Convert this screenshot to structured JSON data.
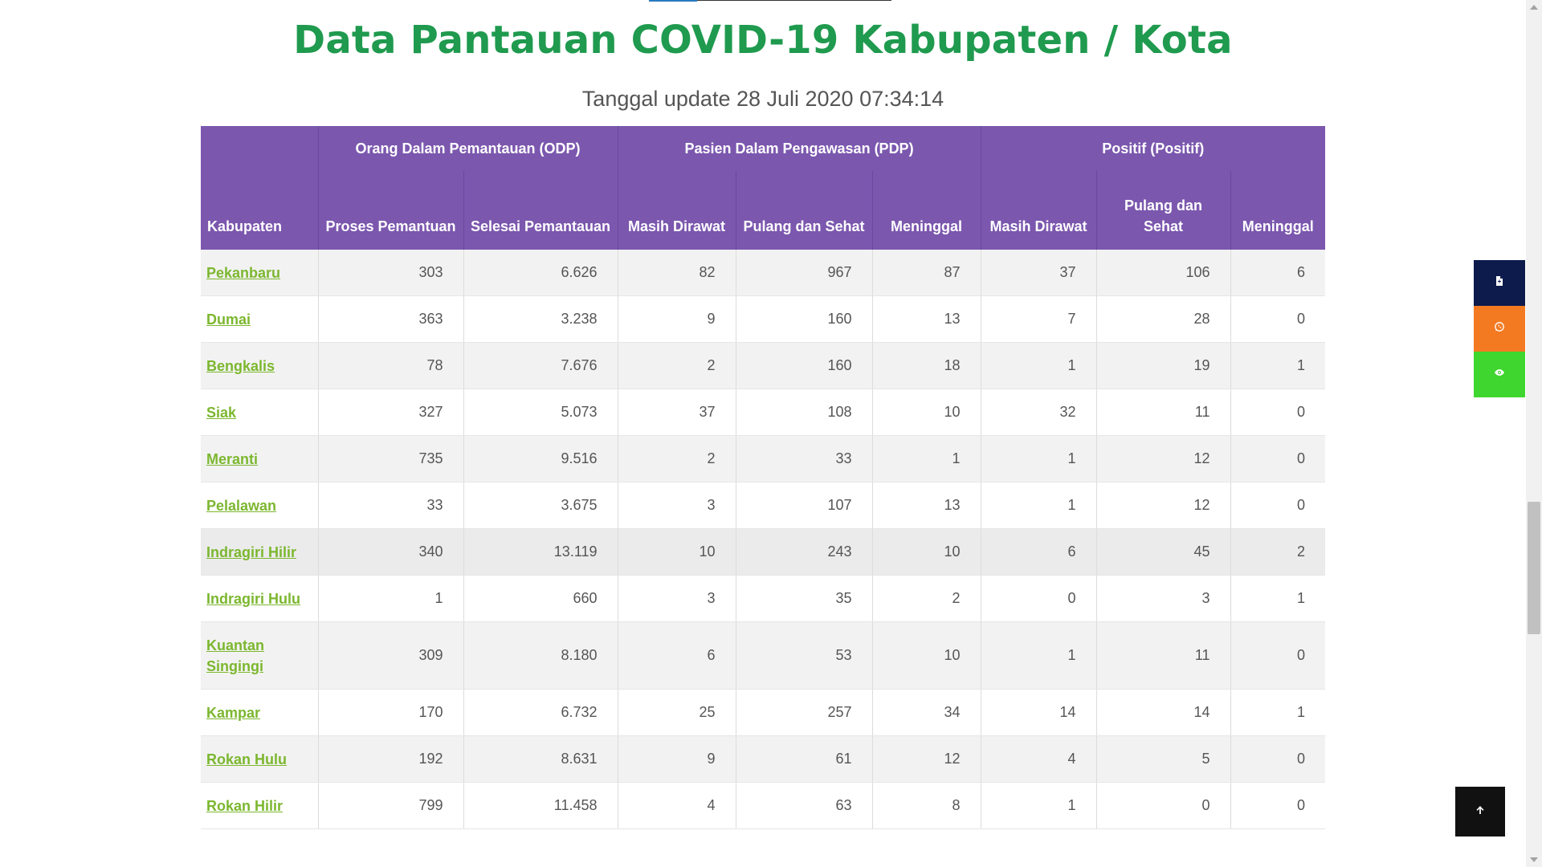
{
  "page": {
    "title": "Data Pantauan COVID-19 Kabupaten / Kota",
    "update_text": "Tanggal update 28 Juli 2020 07:34:14"
  },
  "table": {
    "header_kabupaten": "Kabupaten",
    "groups": {
      "odp": "Orang Dalam Pemantauan (ODP)",
      "pdp": "Pasien Dalam Pengawasan (PDP)",
      "positif": "Positif (Positif)"
    },
    "subheaders": {
      "odp_proses": "Proses Pemantuan",
      "odp_selesai": "Selesai Pemantauan",
      "pdp_masih": "Masih Dirawat",
      "pdp_pulang": "Pulang dan Sehat",
      "pdp_meninggal": "Meninggal",
      "pos_masih": "Masih Dirawat",
      "pos_pulang": "Pulang dan Sehat",
      "pos_meninggal": "Meninggal"
    },
    "rows": [
      {
        "kabupaten": "Pekanbaru",
        "odp_proses": "303",
        "odp_selesai": "6.626",
        "pdp_masih": "82",
        "pdp_pulang": "967",
        "pdp_meninggal": "87",
        "pos_masih": "37",
        "pos_pulang": "106",
        "pos_meninggal": "6"
      },
      {
        "kabupaten": "Dumai",
        "odp_proses": "363",
        "odp_selesai": "3.238",
        "pdp_masih": "9",
        "pdp_pulang": "160",
        "pdp_meninggal": "13",
        "pos_masih": "7",
        "pos_pulang": "28",
        "pos_meninggal": "0"
      },
      {
        "kabupaten": "Bengkalis",
        "odp_proses": "78",
        "odp_selesai": "7.676",
        "pdp_masih": "2",
        "pdp_pulang": "160",
        "pdp_meninggal": "18",
        "pos_masih": "1",
        "pos_pulang": "19",
        "pos_meninggal": "1"
      },
      {
        "kabupaten": "Siak",
        "odp_proses": "327",
        "odp_selesai": "5.073",
        "pdp_masih": "37",
        "pdp_pulang": "108",
        "pdp_meninggal": "10",
        "pos_masih": "32",
        "pos_pulang": "11",
        "pos_meninggal": "0"
      },
      {
        "kabupaten": "Meranti",
        "odp_proses": "735",
        "odp_selesai": "9.516",
        "pdp_masih": "2",
        "pdp_pulang": "33",
        "pdp_meninggal": "1",
        "pos_masih": "1",
        "pos_pulang": "12",
        "pos_meninggal": "0"
      },
      {
        "kabupaten": "Pelalawan",
        "odp_proses": "33",
        "odp_selesai": "3.675",
        "pdp_masih": "3",
        "pdp_pulang": "107",
        "pdp_meninggal": "13",
        "pos_masih": "1",
        "pos_pulang": "12",
        "pos_meninggal": "0"
      },
      {
        "kabupaten": "Indragiri Hilir",
        "odp_proses": "340",
        "odp_selesai": "13.119",
        "pdp_masih": "10",
        "pdp_pulang": "243",
        "pdp_meninggal": "10",
        "pos_masih": "6",
        "pos_pulang": "45",
        "pos_meninggal": "2"
      },
      {
        "kabupaten": "Indragiri Hulu",
        "odp_proses": "1",
        "odp_selesai": "660",
        "pdp_masih": "3",
        "pdp_pulang": "35",
        "pdp_meninggal": "2",
        "pos_masih": "0",
        "pos_pulang": "3",
        "pos_meninggal": "1"
      },
      {
        "kabupaten": "Kuantan Singingi",
        "odp_proses": "309",
        "odp_selesai": "8.180",
        "pdp_masih": "6",
        "pdp_pulang": "53",
        "pdp_meninggal": "10",
        "pos_masih": "1",
        "pos_pulang": "11",
        "pos_meninggal": "0"
      },
      {
        "kabupaten": "Kampar",
        "odp_proses": "170",
        "odp_selesai": "6.732",
        "pdp_masih": "25",
        "pdp_pulang": "257",
        "pdp_meninggal": "34",
        "pos_masih": "14",
        "pos_pulang": "14",
        "pos_meninggal": "1"
      },
      {
        "kabupaten": "Rokan Hulu",
        "odp_proses": "192",
        "odp_selesai": "8.631",
        "pdp_masih": "9",
        "pdp_pulang": "61",
        "pdp_meninggal": "12",
        "pos_masih": "4",
        "pos_pulang": "5",
        "pos_meninggal": "0"
      },
      {
        "kabupaten": "Rokan Hilir",
        "odp_proses": "799",
        "odp_selesai": "11.458",
        "pdp_masih": "4",
        "pdp_pulang": "63",
        "pdp_meninggal": "8",
        "pos_masih": "1",
        "pos_pulang": "0",
        "pos_meninggal": "0"
      }
    ]
  },
  "side_buttons": [
    {
      "icon": "document-icon",
      "color": "#0d1b4c"
    },
    {
      "icon": "whatsapp-icon",
      "color": "#f47a22"
    },
    {
      "icon": "eye-icon",
      "color": "#3fd62f"
    }
  ],
  "back_to_top": {
    "icon": "arrow-up-icon",
    "color": "#111111"
  },
  "colors": {
    "title": "#1f9a4e",
    "header_bg": "#7b57ae",
    "link": "#7cb72f"
  }
}
